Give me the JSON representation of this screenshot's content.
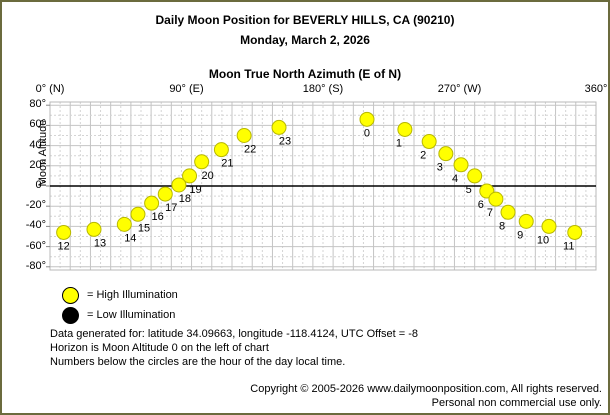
{
  "window": {
    "border_color": "#6b6b3d",
    "background": "#ffffff"
  },
  "header": {
    "title": "Daily Moon Position for BEVERLY HILLS, CA (90210)",
    "subtitle": "Monday, March 2, 2026"
  },
  "chart_data": {
    "type": "scatter",
    "title": "Moon True North Azimuth (E of N)",
    "xlabel": "Moon True North Azimuth (E of N)",
    "ylabel": "Moon Altitude",
    "xlim": [
      0,
      360
    ],
    "ylim": [
      -80,
      80
    ],
    "grid": "square grid, alternating solid and dashed lines, horizon line solid black at altitude 0",
    "x_ticks": [
      {
        "value": 0,
        "label": "0° (N)"
      },
      {
        "value": 90,
        "label": "90° (E)"
      },
      {
        "value": 180,
        "label": "180° (S)"
      },
      {
        "value": 270,
        "label": "270° (W)"
      },
      {
        "value": 360,
        "label": "360°"
      }
    ],
    "y_ticks": [
      {
        "value": 80,
        "label": "80°"
      },
      {
        "value": 60,
        "label": "60°"
      },
      {
        "value": 40,
        "label": "40°"
      },
      {
        "value": 20,
        "label": "20°"
      },
      {
        "value": 0,
        "label": "0°"
      },
      {
        "value": -20,
        "label": "-20°"
      },
      {
        "value": -40,
        "label": "-40°"
      },
      {
        "value": -60,
        "label": "-60°"
      },
      {
        "value": -80,
        "label": "-80°"
      }
    ],
    "marker": {
      "fill": "#ffff00",
      "stroke": "#b8b800",
      "radius": 7
    },
    "series": [
      {
        "name": "High Illumination",
        "points": [
          {
            "hour": 0,
            "azimuth": 209,
            "altitude": 66
          },
          {
            "hour": 1,
            "azimuth": 234,
            "altitude": 56
          },
          {
            "hour": 2,
            "azimuth": 250,
            "altitude": 44
          },
          {
            "hour": 3,
            "azimuth": 261,
            "altitude": 32
          },
          {
            "hour": 4,
            "azimuth": 271,
            "altitude": 21
          },
          {
            "hour": 5,
            "azimuth": 280,
            "altitude": 10
          },
          {
            "hour": 6,
            "azimuth": 288,
            "altitude": -5
          },
          {
            "hour": 7,
            "azimuth": 294,
            "altitude": -13
          },
          {
            "hour": 8,
            "azimuth": 302,
            "altitude": -26
          },
          {
            "hour": 9,
            "azimuth": 314,
            "altitude": -35
          },
          {
            "hour": 10,
            "azimuth": 329,
            "altitude": -40
          },
          {
            "hour": 11,
            "azimuth": 346,
            "altitude": -46
          },
          {
            "hour": 12,
            "azimuth": 9,
            "altitude": -46
          },
          {
            "hour": 13,
            "azimuth": 29,
            "altitude": -43
          },
          {
            "hour": 14,
            "azimuth": 49,
            "altitude": -38
          },
          {
            "hour": 15,
            "azimuth": 58,
            "altitude": -28
          },
          {
            "hour": 16,
            "azimuth": 67,
            "altitude": -17
          },
          {
            "hour": 17,
            "azimuth": 76,
            "altitude": -8
          },
          {
            "hour": 18,
            "azimuth": 85,
            "altitude": 1
          },
          {
            "hour": 19,
            "azimuth": 92,
            "altitude": 10
          },
          {
            "hour": 20,
            "azimuth": 100,
            "altitude": 24
          },
          {
            "hour": 21,
            "azimuth": 113,
            "altitude": 36
          },
          {
            "hour": 22,
            "azimuth": 128,
            "altitude": 50
          },
          {
            "hour": 23,
            "azimuth": 151,
            "altitude": 58
          }
        ]
      }
    ]
  },
  "legend": [
    {
      "swatch_color": "#ffff00",
      "label": "= High Illumination"
    },
    {
      "swatch_color": "#000000",
      "label": "= Low Illumination"
    }
  ],
  "notes": [
    "Data generated for: latitude 34.09663, longitude -118.4124, UTC Offset = -8",
    "Horizon is Moon Altitude 0 on the left of chart",
    "Numbers below the circles are the hour of the day local time."
  ],
  "copyright": [
    "Copyright © 2005-2026 www.dailymoonposition.com, All rights reserved.",
    "Personal non commercial use only."
  ]
}
